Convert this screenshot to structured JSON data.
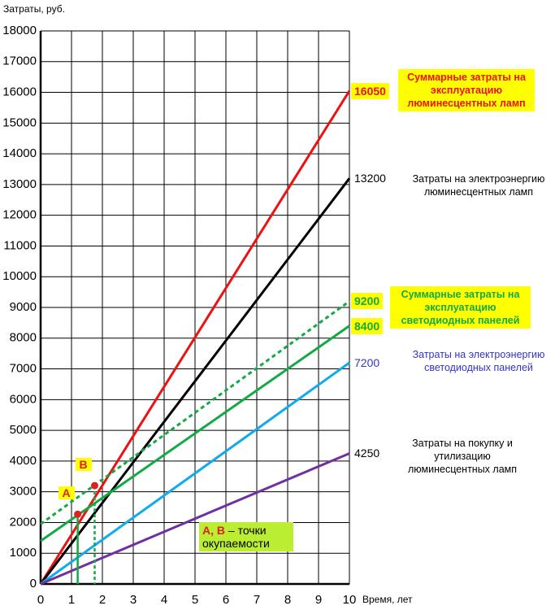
{
  "chart_data": {
    "type": "line",
    "y_label": "Затраты, руб.",
    "x_label": "Время, лет",
    "x": [
      0,
      10
    ],
    "xlim": [
      0,
      10
    ],
    "xticks": [
      0,
      1,
      2,
      3,
      4,
      5,
      6,
      7,
      8,
      9,
      10
    ],
    "ylim": [
      0,
      18000
    ],
    "yticks": [
      0,
      1000,
      2000,
      3000,
      4000,
      5000,
      6000,
      7000,
      8000,
      9000,
      10000,
      11000,
      12000,
      13000,
      14000,
      15000,
      16000,
      17000,
      18000
    ],
    "grid": true,
    "series": [
      {
        "name": "Суммарные затраты на эксплуатацию люминесцентных ламп",
        "color": "#ee1111",
        "values": [
          0,
          16050
        ],
        "label_color": "#ee1111",
        "label_background": "#ffff00",
        "bold": true
      },
      {
        "name": "Затраты на электроэнергию люминесцентных ламп",
        "color": "#000000",
        "values": [
          0,
          13200
        ],
        "label_color": "#000000",
        "bold": false
      },
      {
        "name": "Суммарные затраты на эксплуатацию светодиодных панелей",
        "color": "#11aa44",
        "values": [
          1950,
          9200
        ],
        "dashed": true,
        "label_color": "#11aa44",
        "label_background": "#ffff00",
        "bold": true
      },
      {
        "name": "",
        "color": "#11aa44",
        "values": [
          1400,
          8400
        ],
        "label_color": "#11aa44",
        "label_background": "#ffff00",
        "bold": true
      },
      {
        "name": "Затраты на электроэнергию светодиодных панелей",
        "color": "#11aaee",
        "values": [
          0,
          7200
        ],
        "label_color": "#3333cc",
        "bold": false
      },
      {
        "name": "Затраты на покупку и утилизацию люминесцентных ламп",
        "color": "#7030a0",
        "values": [
          0,
          4250
        ],
        "label_color": "#000000",
        "bold": false
      }
    ],
    "points": [
      {
        "label": "A",
        "x": 1.2,
        "y": 2270,
        "line_color": "#11aa44"
      },
      {
        "label": "B",
        "x": 1.75,
        "y": 3200,
        "line_color": "#11aa44"
      }
    ],
    "point_color": "#dd2222",
    "annotation": {
      "highlight": "A, B",
      "text": "– точки окупаемости",
      "background": "#bbee33"
    }
  }
}
